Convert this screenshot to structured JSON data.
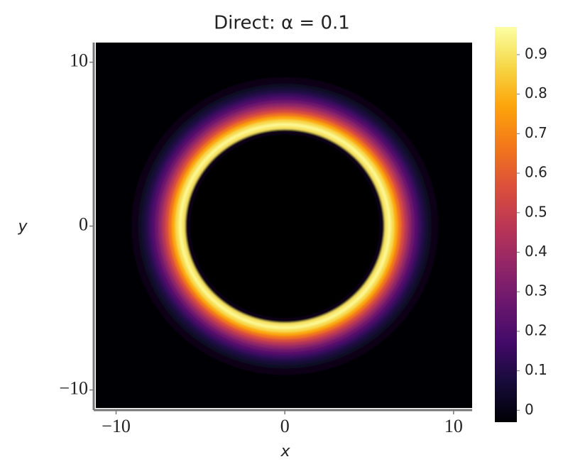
{
  "chart_data": {
    "type": "radial_heatmap",
    "title": "Direct: α = 0.1",
    "x_label": "x",
    "y_label": "y",
    "xlim": [
      -11.2,
      11.1
    ],
    "ylim": [
      -11.1,
      11.2
    ],
    "xticks": [
      {
        "value": -10,
        "label": "−10"
      },
      0,
      10
    ],
    "yticks": [
      {
        "value": -10,
        "label": "−10"
      },
      0,
      10
    ],
    "r": [
      5.6,
      5.8,
      6.0,
      6.2,
      6.4,
      6.6,
      6.8,
      7.0,
      7.2,
      7.4,
      7.6,
      7.8,
      8.0,
      8.2,
      8.4,
      8.6,
      8.8,
      9.0
    ],
    "values": [
      0,
      0,
      0.9,
      0.95,
      0.88,
      0.78,
      0.66,
      0.55,
      0.45,
      0.36,
      0.28,
      0.21,
      0.15,
      0.1,
      0.06,
      0.03,
      0.01,
      0
    ],
    "colormap": "inferno",
    "zlim": [
      -0.03,
      0.97
    ],
    "zticks": [
      0,
      0.1,
      0.2,
      0.3,
      0.4,
      0.5,
      0.6,
      0.7,
      0.8,
      0.9
    ]
  }
}
